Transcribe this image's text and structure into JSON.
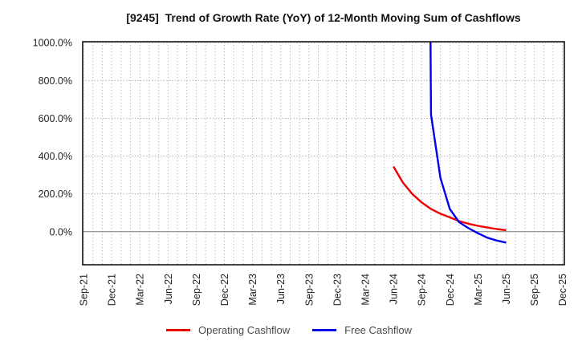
{
  "chart_data": {
    "type": "line",
    "title": "[9245]  Trend of Growth Rate (YoY) of 12-Month Moving Sum of Cashflows",
    "xlabel": "",
    "ylabel": "",
    "unit": "percent",
    "ylim": [
      -175,
      1005
    ],
    "y_ticks": [
      1000,
      800,
      600,
      400,
      200,
      0
    ],
    "y_tick_labels": [
      "1000.0%",
      "800.0%",
      "600.0%",
      "400.0%",
      "200.0%",
      "0.0%"
    ],
    "x_axis": {
      "start_month": "Sep-21",
      "end_month": "Dec-25",
      "months_span": 51,
      "tick_every_months": 3,
      "tick_labels": [
        "Sep-21",
        "Dec-21",
        "Mar-22",
        "Jun-22",
        "Sep-22",
        "Dec-22",
        "Mar-23",
        "Jun-23",
        "Sep-23",
        "Dec-23",
        "Mar-24",
        "Jun-24",
        "Sep-24",
        "Dec-24",
        "Mar-25",
        "Jun-25",
        "Sep-25",
        "Dec-25"
      ]
    },
    "grid": {
      "vertical": "dotted gridline every month",
      "horizontal": "dotted gridline every 200%",
      "zero_line": "solid gray at 0.0%"
    },
    "legend": {
      "position": "bottom-center"
    },
    "series": [
      {
        "name": "Operating Cashflow",
        "color": "#ee0000",
        "points": [
          [
            "Jun-24",
            345
          ],
          [
            "Jul-24",
            260
          ],
          [
            "Aug-24",
            200
          ],
          [
            "Sep-24",
            155
          ],
          [
            "Oct-24",
            120
          ],
          [
            "Nov-24",
            95
          ],
          [
            "Dec-24",
            76
          ],
          [
            "Jan-25",
            56
          ],
          [
            "Feb-25",
            42
          ],
          [
            "Mar-25",
            31
          ],
          [
            "Apr-25",
            22
          ],
          [
            "May-25",
            14
          ],
          [
            "Jun-25",
            8
          ]
        ]
      },
      {
        "name": "Free Cashflow",
        "color": "#0000ee",
        "note": "Sep-24 value is off-scale above the 1000% axis limit (line enters clipped at top)",
        "points": [
          [
            "Sep-24",
            8000
          ],
          [
            "Oct-24",
            620
          ],
          [
            "Nov-24",
            285
          ],
          [
            "Dec-24",
            120
          ],
          [
            "Jan-25",
            50
          ],
          [
            "Feb-25",
            18
          ],
          [
            "Mar-25",
            -8
          ],
          [
            "Apr-25",
            -32
          ],
          [
            "May-25",
            -47
          ],
          [
            "Jun-25",
            -58
          ]
        ]
      }
    ]
  }
}
